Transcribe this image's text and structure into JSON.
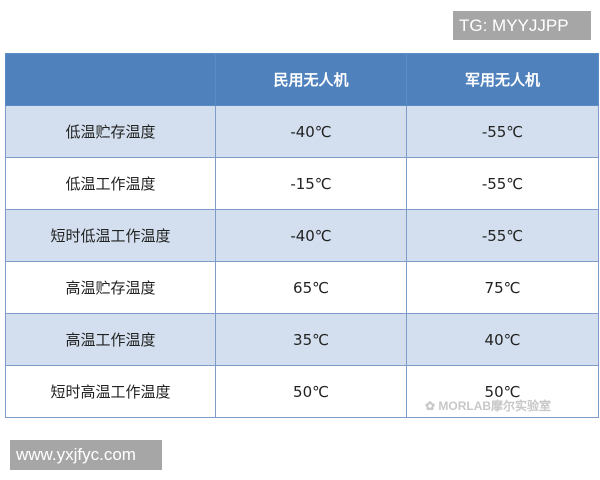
{
  "overlays": {
    "tg": "TG: MYYJJPP",
    "site": "www.yxjfyc.com",
    "watermark": "MORLAB摩尔实验室"
  },
  "table": {
    "headers": [
      "",
      "民用无人机",
      "军用无人机"
    ],
    "rows": [
      [
        "低温贮存温度",
        "-40℃",
        "-55℃"
      ],
      [
        "低温工作温度",
        "-15℃",
        "-55℃"
      ],
      [
        "短时低温工作温度",
        "-40℃",
        "-55℃"
      ],
      [
        "高温贮存温度",
        "65℃",
        "75℃"
      ],
      [
        "高温工作温度",
        "35℃",
        "40℃"
      ],
      [
        "短时高温工作温度",
        "50℃",
        "50℃"
      ]
    ]
  },
  "colors": {
    "header": "#4f81bd",
    "alt_row": "#d3dfee"
  }
}
